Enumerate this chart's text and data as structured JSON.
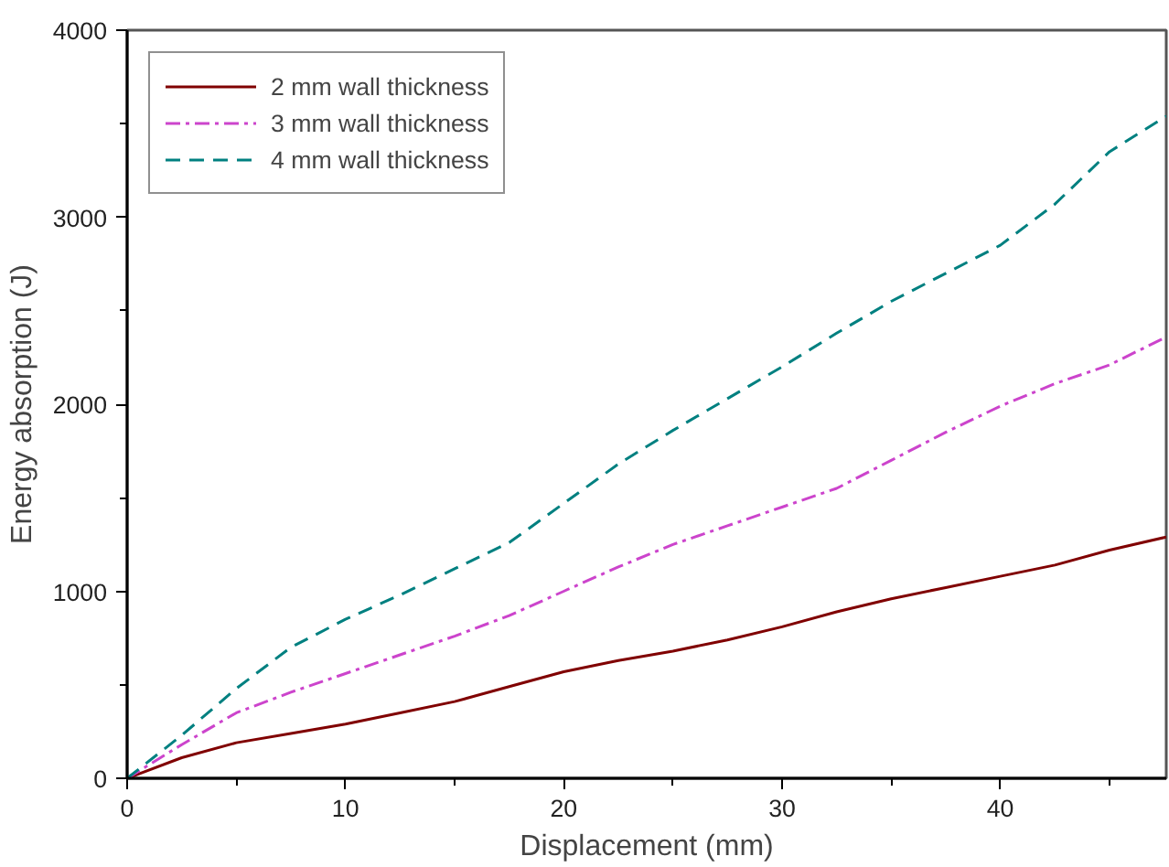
{
  "chart_data": {
    "type": "line",
    "xlabel": "Displacement (mm)",
    "ylabel": "Energy absorption (J)",
    "xlim": [
      0,
      47.6
    ],
    "ylim": [
      0,
      4000
    ],
    "xticks": [
      0,
      {
        "value": 5,
        "label": null
      },
      10,
      {
        "value": 15,
        "label": null
      },
      20,
      {
        "value": 25,
        "label": null
      },
      30,
      {
        "value": 35,
        "label": null
      },
      40,
      {
        "value": 45,
        "label": null
      }
    ],
    "yticks": [
      0,
      {
        "value": 500,
        "label": null
      },
      1000,
      {
        "value": 1500,
        "label": null
      },
      2000,
      {
        "value": 2500,
        "label": null
      },
      3000,
      {
        "value": 3500,
        "label": null
      },
      4000
    ],
    "grid": false,
    "legend": "top left",
    "marker": "none",
    "x": [
      0,
      2.5,
      5,
      7.5,
      10,
      12.5,
      15,
      17.5,
      20,
      22.5,
      25,
      27.5,
      30,
      32.5,
      35,
      37.5,
      40,
      42.5,
      45,
      47.6
    ],
    "series": [
      {
        "name": "2 mm wall thickness",
        "color": "#800000",
        "line_style": "solid",
        "values": [
          0,
          110,
          190,
          240,
          290,
          350,
          410,
          490,
          570,
          630,
          680,
          740,
          810,
          890,
          960,
          1020,
          1080,
          1140,
          1220,
          1290
        ]
      },
      {
        "name": "3 mm wall thickness",
        "color": "#cc44cc",
        "line_style": "dashdot",
        "values": [
          0,
          180,
          350,
          460,
          560,
          660,
          760,
          870,
          1000,
          1130,
          1250,
          1350,
          1450,
          1550,
          1700,
          1850,
          1990,
          2110,
          2210,
          2360
        ]
      },
      {
        "name": "4 mm wall thickness",
        "color": "#008080",
        "line_style": "dashed",
        "values": [
          0,
          230,
          480,
          700,
          850,
          980,
          1120,
          1260,
          1470,
          1680,
          1860,
          2030,
          2200,
          2380,
          2550,
          2700,
          2850,
          3070,
          3350,
          3540
        ]
      }
    ]
  }
}
